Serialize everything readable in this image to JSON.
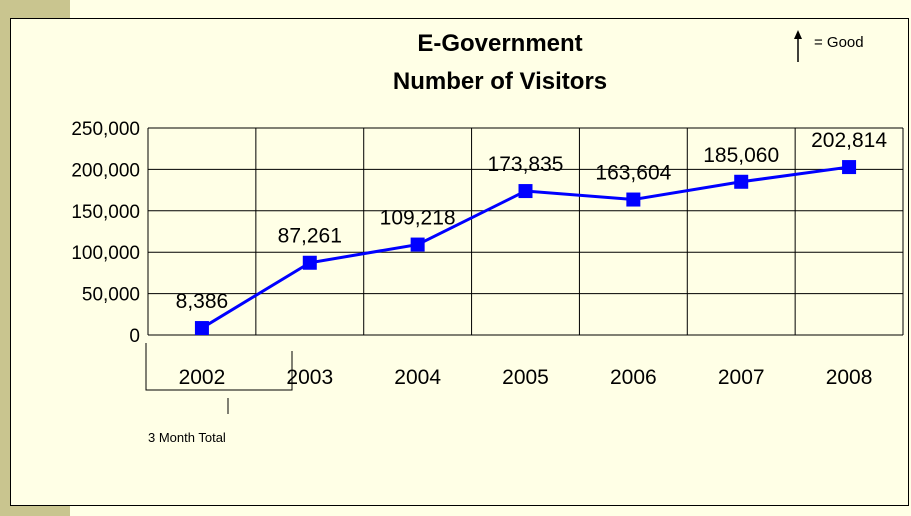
{
  "chart_data": {
    "type": "line",
    "title": "E-Government",
    "subtitle": "Number of Visitors",
    "categories": [
      "2002",
      "2003",
      "2004",
      "2005",
      "2006",
      "2007",
      "2008"
    ],
    "series": [
      {
        "values": [
          8386,
          87261,
          109218,
          173835,
          163604,
          185060,
          202814
        ]
      }
    ],
    "data_labels": [
      "8,386",
      "87,261",
      "109,218",
      "173,835",
      "163,604",
      "185,060",
      "202,814"
    ],
    "y_ticks": [
      "0",
      "50,000",
      "100,000",
      "150,000",
      "200,000",
      "250,000"
    ],
    "ylim": [
      0,
      250000
    ],
    "grid": true,
    "line_color": "#0000ff",
    "marker": "square"
  },
  "legend_note": {
    "text": "= Good",
    "icon": "up-arrow-icon"
  },
  "annotation": {
    "text": "3 Month Total"
  }
}
